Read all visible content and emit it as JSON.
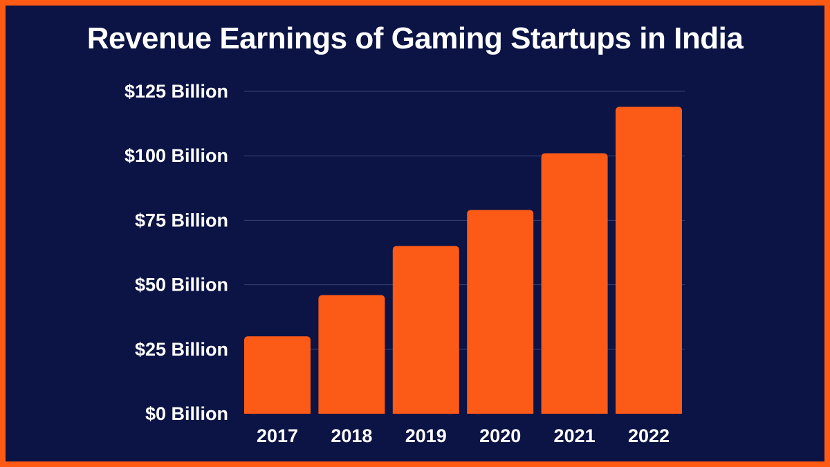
{
  "colors": {
    "background": "#0B1444",
    "border": "#FF5A14",
    "bar": "#FC5A17",
    "text": "#FFFFFF",
    "grid": "#3A4378"
  },
  "chart_data": {
    "type": "bar",
    "title": "Revenue Earnings of Gaming Startups in India",
    "xlabel": "",
    "ylabel": "",
    "categories": [
      "2017",
      "2018",
      "2019",
      "2020",
      "2021",
      "2022"
    ],
    "values": [
      30,
      46,
      65,
      79,
      101,
      119
    ],
    "ylim": [
      0,
      125
    ],
    "yticks": [
      0,
      25,
      50,
      75,
      100,
      125
    ],
    "ytick_labels": [
      "$0 Billion",
      "$25 Billion",
      "$50 Billion",
      "$75 Billion",
      "$100 Billion",
      "$125 Billion"
    ],
    "grid": true,
    "legend": "none"
  }
}
